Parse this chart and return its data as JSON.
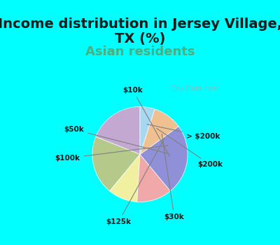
{
  "title": "Income distribution in Jersey Village,\nTX (%)",
  "subtitle": "Asian residents",
  "title_fontsize": 14,
  "subtitle_fontsize": 13,
  "title_color": "#1a1a1a",
  "subtitle_color": "#4CAF82",
  "background_top": "#00FFFF",
  "chart_bg": "#e8f5e9",
  "labels": [
    "> $200k",
    "$200k",
    "$30k",
    "$125k",
    "$100k",
    "$50k",
    "$10k"
  ],
  "sizes": [
    19,
    20,
    10,
    12,
    24,
    10,
    5
  ],
  "colors": [
    "#c3a8d1",
    "#b5c98a",
    "#f0f0a0",
    "#f0a8a8",
    "#9090d8",
    "#f0c090",
    "#a8d8f0"
  ],
  "startangle": 90,
  "watermark": "City-Data.com"
}
